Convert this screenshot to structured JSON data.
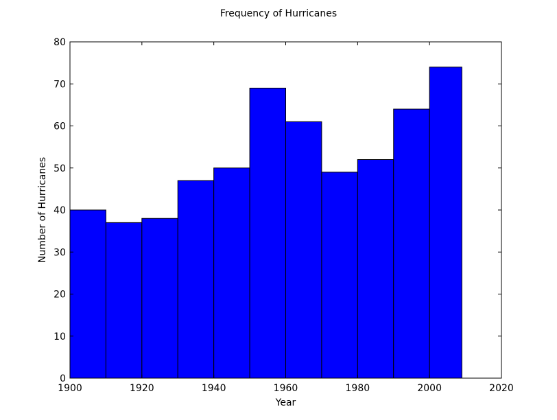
{
  "chart_data": {
    "type": "bar",
    "title": "Frequency of Hurricanes",
    "xlabel": "Year",
    "ylabel": "Number of Hurricanes",
    "bins": [
      {
        "start": 1900,
        "end": 1910,
        "value": 40
      },
      {
        "start": 1910,
        "end": 1920,
        "value": 37
      },
      {
        "start": 1920,
        "end": 1930,
        "value": 38
      },
      {
        "start": 1930,
        "end": 1940,
        "value": 47
      },
      {
        "start": 1940,
        "end": 1950,
        "value": 50
      },
      {
        "start": 1950,
        "end": 1960,
        "value": 69
      },
      {
        "start": 1960,
        "end": 1970,
        "value": 61
      },
      {
        "start": 1970,
        "end": 1980,
        "value": 49
      },
      {
        "start": 1980,
        "end": 1990,
        "value": 52
      },
      {
        "start": 1990,
        "end": 2000,
        "value": 64
      },
      {
        "start": 2000,
        "end": 2009,
        "value": 74
      }
    ],
    "xlim": [
      1900,
      2020
    ],
    "ylim": [
      0,
      80
    ],
    "xticks": [
      "1900",
      "1920",
      "1940",
      "1960",
      "1980",
      "2000",
      "2020"
    ],
    "yticks": [
      "0",
      "10",
      "20",
      "30",
      "40",
      "50",
      "60",
      "70",
      "80"
    ],
    "bar_color": "#0000ff",
    "edge_color": "#000000",
    "grid": false,
    "legend": false
  }
}
